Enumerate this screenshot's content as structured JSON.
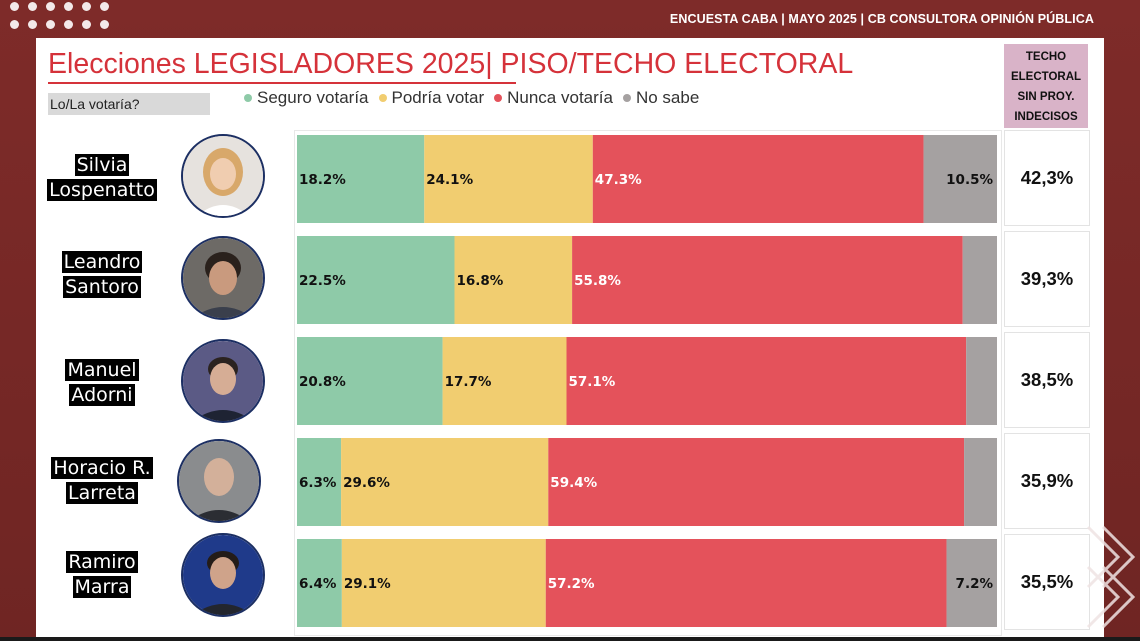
{
  "header": {
    "source": "ENCUESTA CABA | MAYO 2025 | CB CONSULTORA OPINIÓN PÚBLICA"
  },
  "title": "Elecciones LEGISLADORES 2025| PISO/TECHO ELECTORAL",
  "question": "Lo/La votaría?",
  "techo_header": [
    "TECHO",
    "ELECTORAL",
    "SIN PROY.",
    "INDECISOS"
  ],
  "colors": {
    "seguro": "#8ecaa8",
    "podria": "#f1cd70",
    "nunca": "#e4525b",
    "nosabe": "#a5a1a1",
    "title": "#d5323a",
    "background": "#7a2a28",
    "techo_header_bg": "#d9b3c8"
  },
  "candidates": [
    {
      "name_line1": "Silvia",
      "name_line2": "Lospenatto",
      "techo": "42,3%",
      "avatar": "woman-blonde-portrait"
    },
    {
      "name_line1": "Leandro",
      "name_line2": "Santoro",
      "techo": "39,3%",
      "avatar": "man-dark-hair-portrait"
    },
    {
      "name_line1": "Manuel",
      "name_line2": "Adorni",
      "techo": "38,5%",
      "avatar": "man-suit-portrait"
    },
    {
      "name_line1": "Horacio R.",
      "name_line2": "Larreta",
      "techo": "35,9%",
      "avatar": "man-bald-portrait"
    },
    {
      "name_line1": "Ramiro",
      "name_line2": "Marra",
      "techo": "35,5%",
      "avatar": "man-beard-portrait"
    }
  ],
  "chart_data": {
    "type": "bar",
    "orientation": "horizontal",
    "stacked": true,
    "normalized_to": 100,
    "title": "Elecciones LEGISLADORES 2025| PISO/TECHO ELECTORAL",
    "categories": [
      "Silvia Lospenatto",
      "Leandro Santoro",
      "Manuel Adorni",
      "Horacio R. Larreta",
      "Ramiro Marra"
    ],
    "series": [
      {
        "name": "Seguro votaría",
        "color": "#8ecaa8",
        "values": [
          18.2,
          22.5,
          20.8,
          6.3,
          6.4
        ],
        "labels": [
          "18.2%",
          "22.5%",
          "20.8%",
          "6.3%",
          "6.4%"
        ]
      },
      {
        "name": "Podría votar",
        "color": "#f1cd70",
        "values": [
          24.1,
          16.8,
          17.7,
          29.6,
          29.1
        ],
        "labels": [
          "24.1%",
          "16.8%",
          "17.7%",
          "29.6%",
          "29.1%"
        ]
      },
      {
        "name": "Nunca votaría",
        "color": "#e4525b",
        "values": [
          47.3,
          55.8,
          57.1,
          59.4,
          57.2
        ],
        "labels": [
          "47.3%",
          "55.8%",
          "57.1%",
          "59.4%",
          "57.2%"
        ]
      },
      {
        "name": "No sabe",
        "color": "#a5a1a1",
        "values": [
          10.5,
          4.9,
          4.4,
          4.7,
          7.2
        ],
        "labels": [
          "10.5%",
          "",
          "",
          "",
          "7.2%"
        ]
      }
    ],
    "legend": "top",
    "grid": false
  }
}
